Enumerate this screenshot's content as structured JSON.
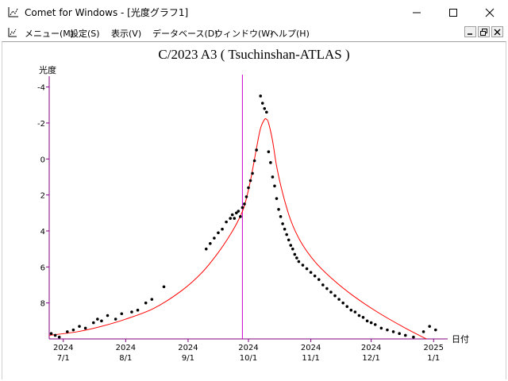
{
  "window": {
    "title": "Comet for Windows - [光度グラフ1]"
  },
  "menu": [
    {
      "label": "メニュー(M)"
    },
    {
      "label": "設定(S)"
    },
    {
      "label": "表示(V)"
    },
    {
      "label": "データベース(D)"
    },
    {
      "label": "ウィンドウ(W)"
    },
    {
      "label": "ヘルプ(H)"
    }
  ],
  "colors": {
    "axis": "#800080",
    "curve": "#ff0000",
    "points": "#000000",
    "marker": "#cc00cc"
  },
  "chart_data": {
    "type": "scatter",
    "title": "C/2023 A3 ( Tsuchinshan-ATLAS )",
    "ylabel": "光度",
    "xlabel": "日付",
    "y_inverted": true,
    "ylim": [
      10,
      -4.6
    ],
    "yticks": [
      -4,
      -2,
      0,
      2,
      4,
      6,
      8
    ],
    "xlim": [
      "2024-06-24",
      "2025-01-08"
    ],
    "xticks": [
      {
        "date": "2024-07-01",
        "year": "2024",
        "md": "7/1"
      },
      {
        "date": "2024-08-01",
        "year": "2024",
        "md": "8/1"
      },
      {
        "date": "2024-09-01",
        "year": "2024",
        "md": "9/1"
      },
      {
        "date": "2024-10-01",
        "year": "2024",
        "md": "10/1"
      },
      {
        "date": "2024-11-01",
        "year": "2024",
        "md": "11/1"
      },
      {
        "date": "2024-12-01",
        "year": "2024",
        "md": "12/1"
      },
      {
        "date": "2025-01-01",
        "year": "2025",
        "md": "1/1"
      }
    ],
    "current_date_marker": "2024-09-28",
    "series": [
      {
        "type": "line",
        "x": [
          "2024-06-24",
          "2024-07-08",
          "2024-07-20",
          "2024-08-01",
          "2024-08-15",
          "2024-08-29",
          "2024-09-08",
          "2024-09-16",
          "2024-09-22",
          "2024-09-26",
          "2024-09-29",
          "2024-10-02",
          "2024-10-05",
          "2024-10-07",
          "2024-10-09",
          "2024-10-10",
          "2024-10-11",
          "2024-10-13",
          "2024-10-15",
          "2024-10-18",
          "2024-10-22",
          "2024-10-27",
          "2024-11-03",
          "2024-11-12",
          "2024-11-22",
          "2024-12-04",
          "2024-12-18",
          "2025-01-01"
        ],
        "y": [
          9.8,
          9.6,
          9.3,
          8.9,
          8.3,
          7.3,
          6.3,
          5.2,
          4.2,
          3.4,
          2.6,
          1.2,
          -0.6,
          -1.7,
          -2.2,
          -2.2,
          -2.0,
          -1.0,
          0.4,
          1.9,
          3.4,
          4.6,
          5.7,
          6.7,
          7.6,
          8.5,
          9.4,
          10.2
        ]
      },
      {
        "type": "scatter",
        "points": [
          [
            "2024-06-25",
            9.7
          ],
          [
            "2024-06-27",
            9.8
          ],
          [
            "2024-06-29",
            9.9
          ],
          [
            "2024-07-03",
            9.6
          ],
          [
            "2024-07-06",
            9.5
          ],
          [
            "2024-07-09",
            9.3
          ],
          [
            "2024-07-12",
            9.4
          ],
          [
            "2024-07-16",
            9.1
          ],
          [
            "2024-07-18",
            8.9
          ],
          [
            "2024-07-20",
            9.0
          ],
          [
            "2024-07-23",
            8.7
          ],
          [
            "2024-07-27",
            8.9
          ],
          [
            "2024-07-30",
            8.6
          ],
          [
            "2024-08-04",
            8.5
          ],
          [
            "2024-08-07",
            8.4
          ],
          [
            "2024-08-11",
            8.0
          ],
          [
            "2024-08-14",
            7.8
          ],
          [
            "2024-08-20",
            7.1
          ],
          [
            "2024-09-10",
            5.0
          ],
          [
            "2024-09-12",
            4.7
          ],
          [
            "2024-09-14",
            4.4
          ],
          [
            "2024-09-16",
            4.1
          ],
          [
            "2024-09-18",
            3.9
          ],
          [
            "2024-09-20",
            3.5
          ],
          [
            "2024-09-22",
            3.3
          ],
          [
            "2024-09-23",
            3.1
          ],
          [
            "2024-09-24",
            3.3
          ],
          [
            "2024-09-25",
            3.0
          ],
          [
            "2024-09-26",
            2.9
          ],
          [
            "2024-09-27",
            3.2
          ],
          [
            "2024-09-28",
            2.7
          ],
          [
            "2024-09-29",
            2.5
          ],
          [
            "2024-09-30",
            2.1
          ],
          [
            "2024-10-01",
            1.6
          ],
          [
            "2024-10-02",
            1.2
          ],
          [
            "2024-10-03",
            0.8
          ],
          [
            "2024-10-04",
            0.1
          ],
          [
            "2024-10-05",
            -0.5
          ],
          [
            "2024-10-07",
            -3.5
          ],
          [
            "2024-10-08",
            -3.1
          ],
          [
            "2024-10-09",
            -2.8
          ],
          [
            "2024-10-10",
            -2.6
          ],
          [
            "2024-10-11",
            -0.4
          ],
          [
            "2024-10-12",
            0.2
          ],
          [
            "2024-10-13",
            1.0
          ],
          [
            "2024-10-14",
            1.5
          ],
          [
            "2024-10-15",
            2.2
          ],
          [
            "2024-10-16",
            2.8
          ],
          [
            "2024-10-17",
            3.2
          ],
          [
            "2024-10-18",
            3.6
          ],
          [
            "2024-10-19",
            3.9
          ],
          [
            "2024-10-20",
            4.2
          ],
          [
            "2024-10-21",
            4.5
          ],
          [
            "2024-10-22",
            4.8
          ],
          [
            "2024-10-23",
            5.0
          ],
          [
            "2024-10-24",
            5.3
          ],
          [
            "2024-10-25",
            5.5
          ],
          [
            "2024-10-26",
            5.7
          ],
          [
            "2024-10-28",
            5.9
          ],
          [
            "2024-10-30",
            6.1
          ],
          [
            "2024-11-01",
            6.3
          ],
          [
            "2024-11-03",
            6.5
          ],
          [
            "2024-11-05",
            6.7
          ],
          [
            "2024-11-07",
            7.0
          ],
          [
            "2024-11-09",
            7.2
          ],
          [
            "2024-11-11",
            7.4
          ],
          [
            "2024-11-13",
            7.6
          ],
          [
            "2024-11-15",
            7.8
          ],
          [
            "2024-11-17",
            8.0
          ],
          [
            "2024-11-19",
            8.2
          ],
          [
            "2024-11-21",
            8.4
          ],
          [
            "2024-11-23",
            8.5
          ],
          [
            "2024-11-25",
            8.7
          ],
          [
            "2024-11-27",
            8.8
          ],
          [
            "2024-11-29",
            9.0
          ],
          [
            "2024-12-01",
            9.1
          ],
          [
            "2024-12-03",
            9.2
          ],
          [
            "2024-12-06",
            9.4
          ],
          [
            "2024-12-09",
            9.5
          ],
          [
            "2024-12-12",
            9.6
          ],
          [
            "2024-12-15",
            9.7
          ],
          [
            "2024-12-18",
            9.8
          ],
          [
            "2024-12-22",
            9.9
          ],
          [
            "2024-12-27",
            9.6
          ],
          [
            "2024-12-30",
            9.3
          ],
          [
            "2025-01-02",
            9.5
          ]
        ]
      }
    ]
  }
}
